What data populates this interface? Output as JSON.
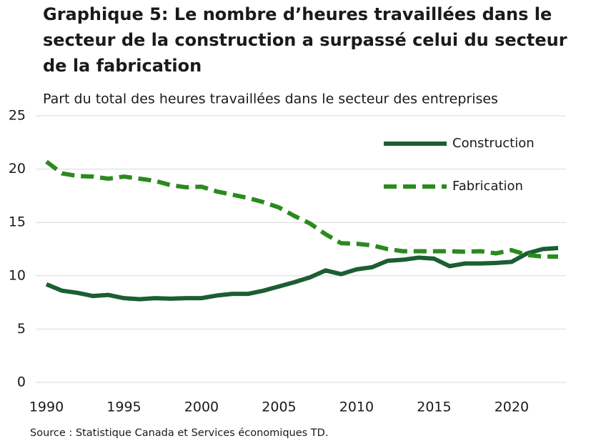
{
  "chart_data": {
    "type": "line",
    "title_lines": [
      "Graphique 5: Le nombre d’heures travaillées dans le",
      "secteur de la construction a surpassé celui du secteur",
      "de la fabrication"
    ],
    "subtitle": "Part du total des heures travaillées dans le secteur des entreprises",
    "source": "Source : Statistique Canada et Services économiques TD.",
    "x": [
      1990,
      1991,
      1992,
      1993,
      1994,
      1995,
      1996,
      1997,
      1998,
      1999,
      2000,
      2001,
      2002,
      2003,
      2004,
      2005,
      2006,
      2007,
      2008,
      2009,
      2010,
      2011,
      2012,
      2013,
      2014,
      2015,
      2016,
      2017,
      2018,
      2019,
      2020,
      2021,
      2022,
      2023
    ],
    "series": [
      {
        "name": "Construction",
        "color": "#1b5e33",
        "dash": false,
        "values": [
          9.2,
          8.6,
          8.4,
          8.1,
          8.2,
          7.9,
          7.8,
          7.9,
          7.85,
          7.9,
          7.9,
          8.15,
          8.3,
          8.3,
          8.6,
          9.0,
          9.4,
          9.85,
          10.5,
          10.15,
          10.6,
          10.8,
          11.4,
          11.5,
          11.7,
          11.6,
          10.9,
          11.15,
          11.15,
          11.2,
          11.3,
          12.1,
          12.5,
          12.6
        ]
      },
      {
        "name": "Fabrication",
        "color": "#2b8a1e",
        "dash": true,
        "values": [
          20.7,
          19.6,
          19.35,
          19.3,
          19.1,
          19.3,
          19.1,
          18.9,
          18.5,
          18.3,
          18.35,
          17.9,
          17.6,
          17.3,
          16.9,
          16.4,
          15.6,
          14.9,
          13.9,
          13.05,
          13.0,
          12.85,
          12.5,
          12.3,
          12.3,
          12.3,
          12.3,
          12.25,
          12.3,
          12.1,
          12.4,
          11.95,
          11.8,
          11.8
        ]
      }
    ],
    "xlim": [
      1990,
      2023
    ],
    "xticks": [
      1990,
      1995,
      2000,
      2005,
      2010,
      2015,
      2020
    ],
    "ylim": [
      0,
      25
    ],
    "yticks": [
      0,
      5,
      10,
      15,
      20,
      25
    ],
    "grid": true
  }
}
